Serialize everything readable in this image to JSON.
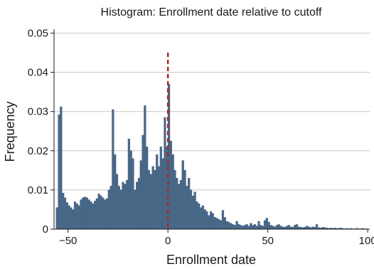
{
  "chart_data": {
    "type": "bar",
    "title": "Histogram: Enrollment date relative to cutoff",
    "xlabel": "Enrollment date",
    "ylabel": "Frequency",
    "xlim": [
      -57,
      101
    ],
    "ylim": [
      0,
      0.051
    ],
    "x_ticks": [
      -50,
      0,
      50,
      100
    ],
    "x_tick_labels": [
      "−50",
      "0",
      "50",
      "100"
    ],
    "y_ticks": [
      0,
      0.01,
      0.02,
      0.03,
      0.04,
      0.05
    ],
    "y_tick_labels": [
      "0",
      "0.01",
      "0.02",
      "0.03",
      "0.04",
      "0.05"
    ],
    "grid": "horizontal",
    "bar_color": "#4a6a8a",
    "bar_edge_color": "#3b5a7a",
    "cutoff_line": {
      "x": 0,
      "y_top": 0.045,
      "color": "#a52a2a",
      "style": "dashed"
    },
    "bin_width": 1,
    "bins": [
      {
        "x": -56,
        "y": 0.0055
      },
      {
        "x": -55,
        "y": 0.0292
      },
      {
        "x": -54,
        "y": 0.0312
      },
      {
        "x": -53,
        "y": 0.0092
      },
      {
        "x": -52,
        "y": 0.008
      },
      {
        "x": -51,
        "y": 0.0068
      },
      {
        "x": -50,
        "y": 0.006
      },
      {
        "x": -49,
        "y": 0.0055
      },
      {
        "x": -48,
        "y": 0.005
      },
      {
        "x": -47,
        "y": 0.007
      },
      {
        "x": -46,
        "y": 0.0065
      },
      {
        "x": -45,
        "y": 0.006
      },
      {
        "x": -44,
        "y": 0.0075
      },
      {
        "x": -43,
        "y": 0.008
      },
      {
        "x": -42,
        "y": 0.0082
      },
      {
        "x": -41,
        "y": 0.008
      },
      {
        "x": -40,
        "y": 0.0075
      },
      {
        "x": -39,
        "y": 0.007
      },
      {
        "x": -38,
        "y": 0.0065
      },
      {
        "x": -37,
        "y": 0.0072
      },
      {
        "x": -36,
        "y": 0.0078
      },
      {
        "x": -35,
        "y": 0.009
      },
      {
        "x": -34,
        "y": 0.0085
      },
      {
        "x": -33,
        "y": 0.008
      },
      {
        "x": -32,
        "y": 0.0075
      },
      {
        "x": -31,
        "y": 0.0078
      },
      {
        "x": -30,
        "y": 0.01
      },
      {
        "x": -29,
        "y": 0.011
      },
      {
        "x": -28,
        "y": 0.0305
      },
      {
        "x": -27,
        "y": 0.019
      },
      {
        "x": -26,
        "y": 0.014
      },
      {
        "x": -25,
        "y": 0.011
      },
      {
        "x": -24,
        "y": 0.01
      },
      {
        "x": -23,
        "y": 0.012
      },
      {
        "x": -22,
        "y": 0.0115
      },
      {
        "x": -21,
        "y": 0.0125
      },
      {
        "x": -20,
        "y": 0.023
      },
      {
        "x": -19,
        "y": 0.02
      },
      {
        "x": -18,
        "y": 0.018
      },
      {
        "x": -17,
        "y": 0.01
      },
      {
        "x": -16,
        "y": 0.012
      },
      {
        "x": -15,
        "y": 0.013
      },
      {
        "x": -14,
        "y": 0.0175
      },
      {
        "x": -13,
        "y": 0.024
      },
      {
        "x": -12,
        "y": 0.0315
      },
      {
        "x": -11,
        "y": 0.021
      },
      {
        "x": -10,
        "y": 0.015
      },
      {
        "x": -9,
        "y": 0.014
      },
      {
        "x": -8,
        "y": 0.016
      },
      {
        "x": -7,
        "y": 0.015
      },
      {
        "x": -6,
        "y": 0.019
      },
      {
        "x": -5,
        "y": 0.016
      },
      {
        "x": -4,
        "y": 0.021
      },
      {
        "x": -3,
        "y": 0.018
      },
      {
        "x": -2,
        "y": 0.0285
      },
      {
        "x": -1,
        "y": 0.021
      },
      {
        "x": 0,
        "y": 0.037
      },
      {
        "x": 1,
        "y": 0.0225
      },
      {
        "x": 2,
        "y": 0.019
      },
      {
        "x": 3,
        "y": 0.015
      },
      {
        "x": 4,
        "y": 0.013
      },
      {
        "x": 5,
        "y": 0.0115
      },
      {
        "x": 6,
        "y": 0.0125
      },
      {
        "x": 7,
        "y": 0.0175
      },
      {
        "x": 8,
        "y": 0.015
      },
      {
        "x": 9,
        "y": 0.011
      },
      {
        "x": 10,
        "y": 0.013
      },
      {
        "x": 11,
        "y": 0.01
      },
      {
        "x": 12,
        "y": 0.0085
      },
      {
        "x": 13,
        "y": 0.0095
      },
      {
        "x": 14,
        "y": 0.007
      },
      {
        "x": 15,
        "y": 0.0065
      },
      {
        "x": 16,
        "y": 0.0055
      },
      {
        "x": 17,
        "y": 0.006
      },
      {
        "x": 18,
        "y": 0.005
      },
      {
        "x": 19,
        "y": 0.0045
      },
      {
        "x": 20,
        "y": 0.0035
      },
      {
        "x": 21,
        "y": 0.0045
      },
      {
        "x": 22,
        "y": 0.004
      },
      {
        "x": 23,
        "y": 0.003
      },
      {
        "x": 24,
        "y": 0.0028
      },
      {
        "x": 25,
        "y": 0.0025
      },
      {
        "x": 26,
        "y": 0.0022
      },
      {
        "x": 27,
        "y": 0.0048
      },
      {
        "x": 28,
        "y": 0.003
      },
      {
        "x": 29,
        "y": 0.002
      },
      {
        "x": 30,
        "y": 0.0018
      },
      {
        "x": 31,
        "y": 0.0015
      },
      {
        "x": 32,
        "y": 0.0012
      },
      {
        "x": 33,
        "y": 0.001
      },
      {
        "x": 34,
        "y": 0.002
      },
      {
        "x": 35,
        "y": 0.0012
      },
      {
        "x": 36,
        "y": 0.001
      },
      {
        "x": 37,
        "y": 0.0008
      },
      {
        "x": 38,
        "y": 0.001
      },
      {
        "x": 39,
        "y": 0.0012
      },
      {
        "x": 40,
        "y": 0.0008
      },
      {
        "x": 41,
        "y": 0.0015
      },
      {
        "x": 42,
        "y": 0.001
      },
      {
        "x": 43,
        "y": 0.0012
      },
      {
        "x": 44,
        "y": 0.0008
      },
      {
        "x": 45,
        "y": 0.002
      },
      {
        "x": 46,
        "y": 0.001
      },
      {
        "x": 47,
        "y": 0.0008
      },
      {
        "x": 48,
        "y": 0.0022
      },
      {
        "x": 49,
        "y": 0.0028
      },
      {
        "x": 50,
        "y": 0.0018
      },
      {
        "x": 51,
        "y": 0.001
      },
      {
        "x": 52,
        "y": 0.0008
      },
      {
        "x": 53,
        "y": 0.0006
      },
      {
        "x": 54,
        "y": 0.001
      },
      {
        "x": 55,
        "y": 0.0012
      },
      {
        "x": 56,
        "y": 0.0008
      },
      {
        "x": 57,
        "y": 0.0006
      },
      {
        "x": 58,
        "y": 0.0005
      },
      {
        "x": 59,
        "y": 0.0008
      },
      {
        "x": 60,
        "y": 0.001
      },
      {
        "x": 61,
        "y": 0.0006
      },
      {
        "x": 62,
        "y": 0.0005
      },
      {
        "x": 63,
        "y": 0.001
      },
      {
        "x": 64,
        "y": 0.0012
      },
      {
        "x": 65,
        "y": 0.0006
      },
      {
        "x": 66,
        "y": 0.0005
      },
      {
        "x": 67,
        "y": 0.0004
      },
      {
        "x": 68,
        "y": 0.0005
      },
      {
        "x": 69,
        "y": 0.0008
      },
      {
        "x": 70,
        "y": 0.0006
      },
      {
        "x": 71,
        "y": 0.0004
      },
      {
        "x": 72,
        "y": 0.0006
      },
      {
        "x": 73,
        "y": 0.0005
      },
      {
        "x": 74,
        "y": 0.0012
      },
      {
        "x": 75,
        "y": 0.0004
      },
      {
        "x": 76,
        "y": 0.0003
      },
      {
        "x": 77,
        "y": 0.0005
      },
      {
        "x": 78,
        "y": 0.0004
      },
      {
        "x": 79,
        "y": 0.0003
      },
      {
        "x": 80,
        "y": 0.0002
      },
      {
        "x": 81,
        "y": 0.0003
      },
      {
        "x": 82,
        "y": 0.0002
      },
      {
        "x": 83,
        "y": 0.0003
      },
      {
        "x": 84,
        "y": 0.0002
      },
      {
        "x": 85,
        "y": 0.0002
      },
      {
        "x": 86,
        "y": 0.0003
      },
      {
        "x": 87,
        "y": 0.0002
      },
      {
        "x": 88,
        "y": 0.0001
      },
      {
        "x": 89,
        "y": 0.0002
      },
      {
        "x": 90,
        "y": 0.0001
      },
      {
        "x": 91,
        "y": 0.0002
      },
      {
        "x": 92,
        "y": 0.0001
      },
      {
        "x": 93,
        "y": 0.0001
      },
      {
        "x": 94,
        "y": 0.0002
      },
      {
        "x": 95,
        "y": 0.0001
      },
      {
        "x": 96,
        "y": 0.0001
      },
      {
        "x": 97,
        "y": 0.0002
      },
      {
        "x": 98,
        "y": 0.0001
      },
      {
        "x": 99,
        "y": 0.0001
      }
    ]
  }
}
